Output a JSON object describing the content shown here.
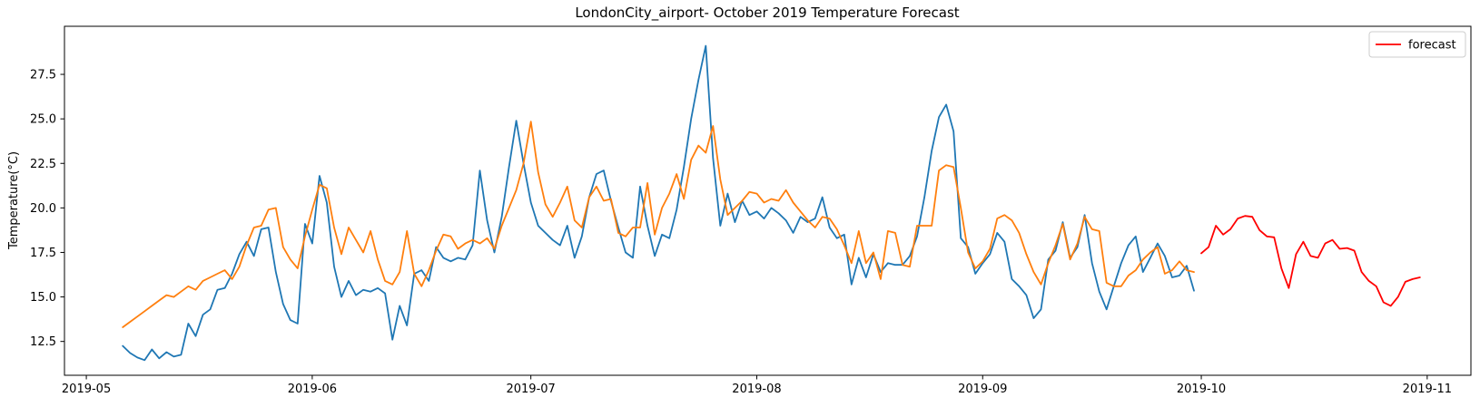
{
  "figure": {
    "background": "#ffffff",
    "title": "LondonCity_airport- October 2019 Temperature Forecast"
  },
  "chart_data": {
    "type": "line",
    "title": "LondonCity_airport- October 2019 Temperature Forecast",
    "xlabel": "",
    "ylabel": "Temperature(°C)",
    "grid": false,
    "xlim": [
      "2019-04-28",
      "2019-11-07"
    ],
    "ylim": [
      10.6,
      30.2
    ],
    "x_ticks": [
      {
        "date": "2019-05-01",
        "label": "2019-05"
      },
      {
        "date": "2019-06-01",
        "label": "2019-06"
      },
      {
        "date": "2019-07-01",
        "label": "2019-07"
      },
      {
        "date": "2019-08-01",
        "label": "2019-08"
      },
      {
        "date": "2019-09-01",
        "label": "2019-09"
      },
      {
        "date": "2019-10-01",
        "label": "2019-10"
      },
      {
        "date": "2019-11-01",
        "label": "2019-11"
      }
    ],
    "y_ticks": [
      {
        "value": 12.5,
        "label": "12.5"
      },
      {
        "value": 15.0,
        "label": "15.0"
      },
      {
        "value": 17.5,
        "label": "17.5"
      },
      {
        "value": 20.0,
        "label": "20.0"
      },
      {
        "value": 22.5,
        "label": "22.5"
      },
      {
        "value": 25.0,
        "label": "25.0"
      },
      {
        "value": 27.5,
        "label": "27.5"
      }
    ],
    "legend": {
      "position": "upper-right",
      "entries": [
        {
          "label": "forecast",
          "color": "#ff0000"
        }
      ]
    },
    "series": [
      {
        "name": "unlabeled-blue-observed",
        "color": "#1f77b4",
        "start_date": "2019-05-06",
        "frequency": "daily",
        "values": [
          12.25,
          11.85,
          11.6,
          11.45,
          12.05,
          11.55,
          11.9,
          11.65,
          11.75,
          13.5,
          12.8,
          14.0,
          14.3,
          15.4,
          15.5,
          16.3,
          17.4,
          18.1,
          17.3,
          18.8,
          18.9,
          16.4,
          14.6,
          13.7,
          13.5,
          19.1,
          18.0,
          21.8,
          20.3,
          16.7,
          15.0,
          15.9,
          15.1,
          15.4,
          15.3,
          15.5,
          15.2,
          12.6,
          14.5,
          13.4,
          16.3,
          16.5,
          15.9,
          17.8,
          17.2,
          17.0,
          17.2,
          17.1,
          17.9,
          22.1,
          19.3,
          17.5,
          19.5,
          22.3,
          24.9,
          22.5,
          20.3,
          19.0,
          18.6,
          18.2,
          17.9,
          19.0,
          17.2,
          18.4,
          20.6,
          21.9,
          22.1,
          20.4,
          18.9,
          17.5,
          17.2,
          21.2,
          19.0,
          17.3,
          18.5,
          18.3,
          19.9,
          22.3,
          25.0,
          27.2,
          29.1,
          22.8,
          19.0,
          20.8,
          19.2,
          20.4,
          19.6,
          19.8,
          19.4,
          20.0,
          19.7,
          19.3,
          18.6,
          19.5,
          19.2,
          19.4,
          20.6,
          18.9,
          18.3,
          18.5,
          15.7,
          17.2,
          16.1,
          17.4,
          16.4,
          16.9,
          16.8,
          16.8,
          17.3,
          18.4,
          20.6,
          23.2,
          25.1,
          25.8,
          24.3,
          18.3,
          17.8,
          16.3,
          16.9,
          17.4,
          18.6,
          18.1,
          16.0,
          15.6,
          15.1,
          13.8,
          14.3,
          17.1,
          17.6,
          19.2,
          17.2,
          17.8,
          19.6,
          16.9,
          15.3,
          14.3,
          15.6,
          16.9,
          17.9,
          18.4,
          16.4,
          17.2,
          18.0,
          17.3,
          16.1,
          16.2,
          16.75,
          15.35
        ]
      },
      {
        "name": "unlabeled-orange-observed",
        "color": "#ff7f0e",
        "start_date": "2019-05-06",
        "frequency": "daily",
        "values": [
          13.3,
          13.6,
          13.9,
          14.2,
          14.5,
          14.8,
          15.1,
          15.0,
          15.3,
          15.6,
          15.4,
          15.9,
          16.1,
          16.3,
          16.5,
          16.0,
          16.7,
          17.9,
          18.9,
          19.0,
          19.9,
          20.0,
          17.8,
          17.1,
          16.6,
          18.4,
          19.9,
          21.3,
          21.1,
          18.9,
          17.4,
          18.9,
          18.2,
          17.5,
          18.7,
          17.1,
          15.9,
          15.7,
          16.4,
          18.7,
          16.3,
          15.6,
          16.5,
          17.6,
          18.5,
          18.4,
          17.7,
          18.0,
          18.2,
          18.0,
          18.3,
          17.7,
          19.0,
          20.0,
          21.0,
          22.5,
          24.85,
          22.0,
          20.2,
          19.5,
          20.3,
          21.2,
          19.3,
          18.9,
          20.6,
          21.2,
          20.4,
          20.5,
          18.6,
          18.4,
          18.9,
          18.9,
          21.4,
          18.5,
          20.0,
          20.8,
          21.9,
          20.5,
          22.7,
          23.5,
          23.1,
          24.6,
          21.6,
          19.6,
          20.0,
          20.4,
          20.9,
          20.8,
          20.3,
          20.5,
          20.4,
          21.0,
          20.3,
          19.8,
          19.3,
          18.9,
          19.5,
          19.4,
          18.8,
          17.9,
          16.9,
          18.7,
          16.9,
          17.5,
          16.0,
          18.7,
          18.6,
          16.8,
          16.7,
          19.0,
          19.0,
          19.0,
          22.1,
          22.4,
          22.3,
          20.0,
          17.5,
          16.6,
          17.0,
          17.7,
          19.4,
          19.6,
          19.3,
          18.6,
          17.4,
          16.4,
          15.7,
          16.9,
          17.9,
          19.1,
          17.1,
          18.0,
          19.5,
          18.8,
          18.7,
          15.8,
          15.6,
          15.6,
          16.2,
          16.5,
          17.1,
          17.5,
          17.8,
          16.3,
          16.5,
          17.0,
          16.5,
          16.4
        ]
      },
      {
        "name": "forecast",
        "color": "#ff0000",
        "start_date": "2019-10-01",
        "frequency": "daily",
        "values": [
          17.45,
          17.8,
          19.0,
          18.5,
          18.8,
          19.4,
          19.55,
          19.5,
          18.75,
          18.4,
          18.35,
          16.6,
          15.5,
          17.4,
          18.1,
          17.3,
          17.2,
          18.0,
          18.2,
          17.7,
          17.75,
          17.6,
          16.4,
          15.9,
          15.6,
          14.7,
          14.5,
          15.0,
          15.85,
          16.0,
          16.1
        ]
      }
    ]
  }
}
